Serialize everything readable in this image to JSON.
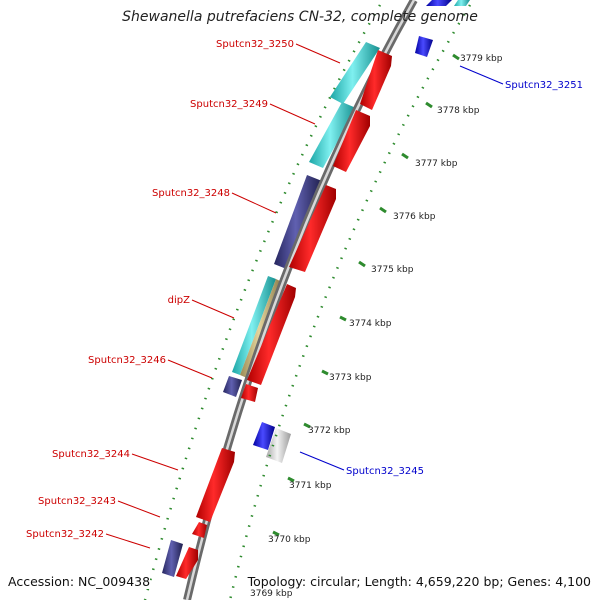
{
  "title": "Shewanella putrefaciens CN-32, complete genome",
  "accession": "Accession: NC_009438",
  "topology": "Topology: circular; Length: 4,659,220 bp; Genes: 4,100",
  "colors": {
    "backbone": "#8a8a8a",
    "tick": "#2e8b2e",
    "label_red": "#cc0000",
    "label_blue": "#0000cc",
    "red_feature": "#ff0000",
    "cyan_feature": "#2fd3d3",
    "navy_feature": "#3f3f8f",
    "blue_feature": "#1a1aee",
    "tan_feature": "#c8b478",
    "gray_feature": "#d0d0d0"
  },
  "scale_labels": [
    "3779 kbp",
    "3778 kbp",
    "3777 kbp",
    "3776 kbp",
    "3775 kbp",
    "3774 kbp",
    "3773 kbp",
    "3772 kbp",
    "3771 kbp",
    "3770 kbp",
    "3769 kbp"
  ],
  "gene_labels": [
    {
      "text": "Sputcn32_3250",
      "color": "red"
    },
    {
      "text": "Sputcn32_3249",
      "color": "red"
    },
    {
      "text": "Sputcn32_3248",
      "color": "red"
    },
    {
      "text": "dipZ",
      "color": "red"
    },
    {
      "text": "Sputcn32_3246",
      "color": "red"
    },
    {
      "text": "Sputcn32_3244",
      "color": "red"
    },
    {
      "text": "Sputcn32_3243",
      "color": "red"
    },
    {
      "text": "Sputcn32_3242",
      "color": "red"
    },
    {
      "text": "Sputcn32_3251",
      "color": "blue"
    },
    {
      "text": "Sputcn32_3245",
      "color": "blue"
    }
  ]
}
